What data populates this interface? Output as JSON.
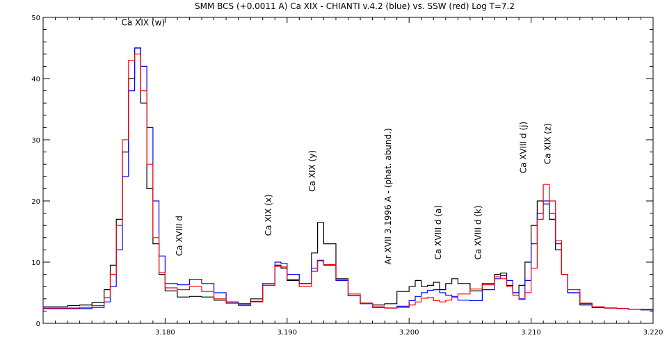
{
  "chart_data": {
    "type": "line",
    "title": "SMM BCS (+0.0011 A) Ca XIX - CHIANTI v.4.2 (blue) vs. SSW (red) Log T=7.2",
    "xlabel": "",
    "ylabel": "",
    "xlim": [
      3.17,
      3.22
    ],
    "ylim": [
      0,
      50
    ],
    "grid": false,
    "x_tick_labels": [
      {
        "value": 3.18,
        "label": "3.180"
      },
      {
        "value": 3.19,
        "label": "3.190"
      },
      {
        "value": 3.2,
        "label": "3.200"
      },
      {
        "value": 3.21,
        "label": "3.210"
      },
      {
        "value": 3.22,
        "label": "3.220"
      }
    ],
    "y_tick_labels": [
      {
        "value": 0,
        "label": "0"
      },
      {
        "value": 10,
        "label": "10"
      },
      {
        "value": 20,
        "label": "20"
      },
      {
        "value": 30,
        "label": "30"
      },
      {
        "value": 40,
        "label": "40"
      },
      {
        "value": 50,
        "label": "50"
      }
    ],
    "series": [
      {
        "color": "#000000",
        "x": [
          3.17,
          3.171,
          3.172,
          3.173,
          3.174,
          3.175,
          3.1755,
          3.176,
          3.1765,
          3.177,
          3.1775,
          3.178,
          3.1785,
          3.179,
          3.1795,
          3.18,
          3.181,
          3.182,
          3.183,
          3.184,
          3.185,
          3.186,
          3.187,
          3.188,
          3.189,
          3.1895,
          3.19,
          3.191,
          3.192,
          3.1925,
          3.193,
          3.194,
          3.195,
          3.196,
          3.197,
          3.198,
          3.199,
          3.2,
          3.2005,
          3.201,
          3.2015,
          3.202,
          3.2025,
          3.203,
          3.2035,
          3.204,
          3.205,
          3.206,
          3.207,
          3.2075,
          3.208,
          3.2085,
          3.209,
          3.2095,
          3.21,
          3.2105,
          3.211,
          3.2115,
          3.212,
          3.2125,
          3.213,
          3.214,
          3.215,
          3.216,
          3.217,
          3.218,
          3.219,
          3.22
        ],
        "y": [
          2.7,
          2.7,
          2.9,
          3.0,
          3.4,
          5.5,
          9.5,
          17,
          28,
          40,
          45,
          36,
          22,
          13,
          8,
          5.3,
          4.3,
          4.4,
          4.3,
          3.8,
          3.3,
          3.2,
          4.0,
          6.2,
          9.5,
          9.0,
          7,
          6.5,
          11.5,
          16.5,
          13,
          7.3,
          4.5,
          3.3,
          3.0,
          3.2,
          5.2,
          6.0,
          7.0,
          6.0,
          6.2,
          6.7,
          5.5,
          6.5,
          7.3,
          6.5,
          5.3,
          6.5,
          8.0,
          8.2,
          6.2,
          5.0,
          6.2,
          10,
          16,
          20,
          19.5,
          17,
          12,
          8,
          5,
          3.0,
          2.6,
          2.5,
          2.4,
          2.3,
          2.2,
          2.4
        ]
      },
      {
        "color": "#0000ff",
        "x": [
          3.17,
          3.171,
          3.172,
          3.173,
          3.174,
          3.175,
          3.1755,
          3.176,
          3.1765,
          3.177,
          3.1775,
          3.178,
          3.1785,
          3.179,
          3.1795,
          3.18,
          3.181,
          3.182,
          3.183,
          3.184,
          3.185,
          3.186,
          3.187,
          3.188,
          3.189,
          3.1895,
          3.19,
          3.191,
          3.192,
          3.1925,
          3.193,
          3.194,
          3.195,
          3.196,
          3.197,
          3.198,
          3.199,
          3.2,
          3.2005,
          3.201,
          3.2015,
          3.202,
          3.2025,
          3.203,
          3.2035,
          3.204,
          3.205,
          3.206,
          3.207,
          3.2075,
          3.208,
          3.2085,
          3.209,
          3.2095,
          3.21,
          3.2105,
          3.211,
          3.2115,
          3.212,
          3.2125,
          3.213,
          3.214,
          3.215,
          3.216,
          3.217,
          3.218,
          3.219,
          3.22
        ],
        "y": [
          2.4,
          2.4,
          2.4,
          2.4,
          2.6,
          3.5,
          6,
          12,
          24,
          38,
          45,
          42,
          32,
          20,
          11,
          6.5,
          6.3,
          7.2,
          6.5,
          5.0,
          3.5,
          3.0,
          3.6,
          6.5,
          10,
          9.8,
          8,
          6.5,
          9,
          10.3,
          9.5,
          7,
          4.5,
          3.2,
          2.6,
          2.5,
          2.8,
          3.7,
          4.4,
          5.0,
          5.4,
          5.5,
          5.0,
          4.6,
          4.4,
          3.8,
          3.7,
          5.5,
          7.3,
          7.8,
          7.0,
          5.0,
          4.0,
          7,
          13,
          18,
          20,
          18,
          13,
          8,
          5,
          3.2,
          2.6,
          2.5,
          2.4,
          2.3,
          2.2,
          2.3
        ]
      },
      {
        "color": "#ff0000",
        "x": [
          3.17,
          3.171,
          3.172,
          3.173,
          3.174,
          3.175,
          3.1755,
          3.176,
          3.1765,
          3.177,
          3.1775,
          3.178,
          3.1785,
          3.179,
          3.1795,
          3.18,
          3.181,
          3.182,
          3.183,
          3.184,
          3.185,
          3.186,
          3.187,
          3.188,
          3.189,
          3.1895,
          3.19,
          3.191,
          3.192,
          3.1925,
          3.193,
          3.194,
          3.195,
          3.196,
          3.197,
          3.198,
          3.199,
          3.2,
          3.2005,
          3.201,
          3.2015,
          3.202,
          3.2025,
          3.203,
          3.2035,
          3.204,
          3.205,
          3.206,
          3.207,
          3.2075,
          3.208,
          3.2085,
          3.209,
          3.2095,
          3.21,
          3.2105,
          3.211,
          3.2115,
          3.212,
          3.2125,
          3.213,
          3.214,
          3.215,
          3.216,
          3.217,
          3.218,
          3.219,
          3.22
        ],
        "y": [
          2.5,
          2.5,
          2.5,
          2.6,
          2.9,
          4.2,
          8,
          16,
          30,
          43,
          44,
          38,
          26,
          14,
          8.3,
          5.8,
          5.5,
          6.0,
          5.2,
          4.0,
          3.3,
          2.9,
          3.5,
          6.2,
          9.3,
          9.2,
          7.2,
          6.0,
          8.5,
          10.2,
          9.6,
          7.2,
          4.8,
          3.3,
          2.7,
          2.5,
          2.6,
          3.0,
          3.5,
          4.1,
          4.2,
          3.7,
          3.5,
          3.8,
          4.2,
          4.8,
          5.6,
          6.3,
          7.6,
          7.3,
          6.0,
          4.6,
          3.9,
          5,
          9,
          17,
          22.7,
          20,
          13.5,
          8,
          5.5,
          3.3,
          2.7,
          2.5,
          2.4,
          2.3,
          2.3,
          2.3
        ]
      }
    ],
    "annotations": [
      {
        "text": "Ca XIX (w)",
        "x": 3.1782,
        "y": 48.7,
        "rotate": 0
      },
      {
        "text": "Ca XVIII d",
        "x": 3.1814,
        "y": 11.0,
        "rotate": -90
      },
      {
        "text": "Ca XIX (x)",
        "x": 3.1887,
        "y": 14.3,
        "rotate": -90
      },
      {
        "text": "Ca XIX  (y)",
        "x": 3.1923,
        "y": 21.5,
        "rotate": -90
      },
      {
        "text": "Ar XVII 3.1996 A - (phat. abund.)",
        "x": 3.1985,
        "y": 9.6,
        "rotate": -90
      },
      {
        "text": "Ca XVIII  d  (a)",
        "x": 3.2026,
        "y": 10.4,
        "rotate": -90
      },
      {
        "text": "Ca XVIII  d  (k)",
        "x": 3.2059,
        "y": 10.4,
        "rotate": -90
      },
      {
        "text": "Ca XVIII  d  (j)",
        "x": 3.2096,
        "y": 24.5,
        "rotate": -90
      },
      {
        "text": "Ca XIX  (z)",
        "x": 3.2116,
        "y": 26.0,
        "rotate": -90
      }
    ]
  }
}
